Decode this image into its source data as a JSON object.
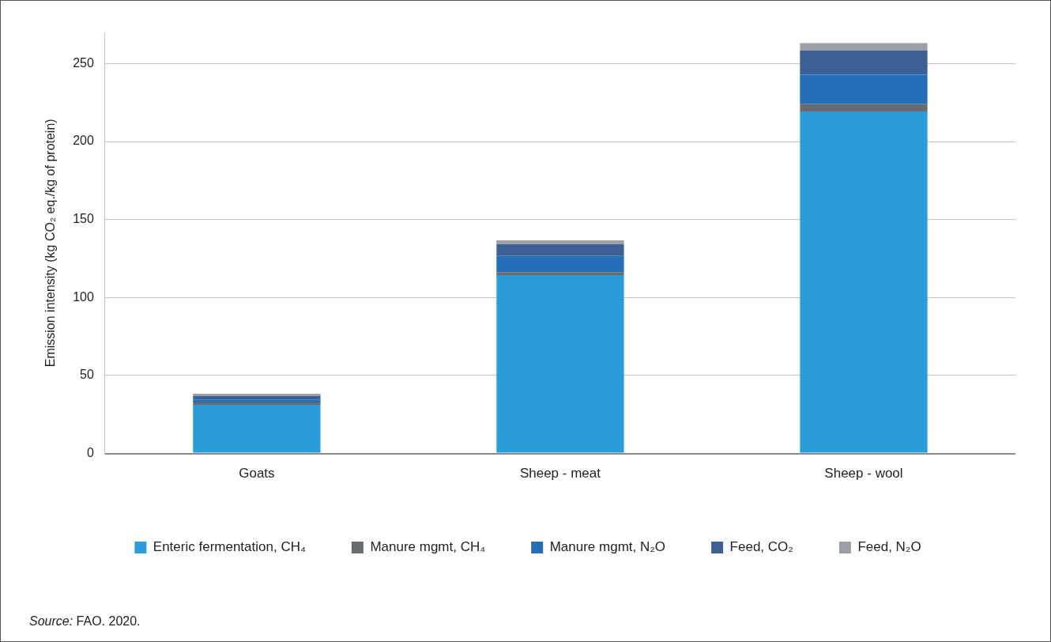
{
  "chart_data": {
    "type": "bar",
    "stacked": true,
    "categories": [
      "Goats",
      "Sheep - meat",
      "Sheep - wool"
    ],
    "ylabel": "Emission intensity (kg CO₂ eq./kg of protein)",
    "ylim": [
      0,
      270
    ],
    "yticks": [
      0,
      50,
      100,
      150,
      200,
      250
    ],
    "grid": "y",
    "legend": "bottom",
    "series": [
      {
        "name": "Enteric fermentation, CH₄",
        "color": "#2b9cd8",
        "values": [
          31.2,
          114.4,
          219.3
        ]
      },
      {
        "name": "Manure mgmt, CH₄",
        "color": "#686b70",
        "values": [
          1.6,
          1.9,
          4.7
        ]
      },
      {
        "name": "Manure mgmt, N₂O",
        "color": "#246fb7",
        "values": [
          1.9,
          10.4,
          18.9
        ]
      },
      {
        "name": "Feed, CO₂",
        "color": "#3c6096",
        "values": [
          2.2,
          7.6,
          15.6
        ]
      },
      {
        "name": "Feed, N₂O",
        "color": "#9c9fa3",
        "values": [
          1.4,
          2.4,
          4.7
        ]
      }
    ],
    "annotations": [
      "Source: FAO. 2020."
    ]
  }
}
